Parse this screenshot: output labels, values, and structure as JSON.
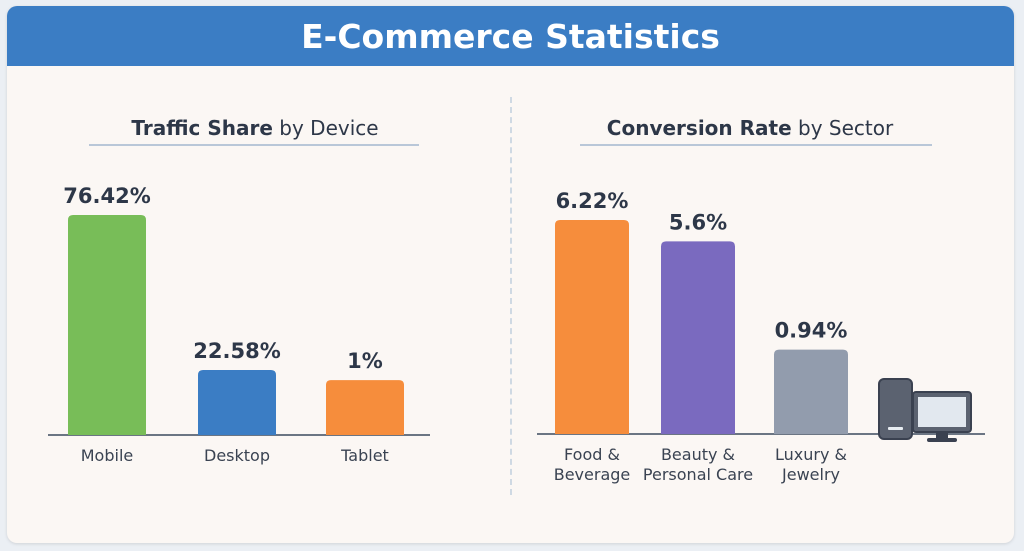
{
  "page": {
    "title": "E-Commerce Statistics"
  },
  "panels": [
    {
      "title_bold": "Traffic Share",
      "title_rest": " by Device"
    },
    {
      "title_bold": "Conversion Rate",
      "title_rest": " by Sector"
    }
  ],
  "icons": {
    "desktop_computer": "desktop-computer-icon"
  },
  "colors": {
    "header": "#3b7dc4",
    "mobile": "#78bd58",
    "desktop": "#3b7dc4",
    "tablet": "#f68d3c",
    "food": "#f68d3c",
    "beauty": "#7a6abf",
    "luxury": "#929cad"
  },
  "chart_data": [
    {
      "type": "bar",
      "title": "Traffic Share by Device",
      "categories": [
        "Mobile",
        "Desktop",
        "Tablet"
      ],
      "values": [
        76.42,
        22.58,
        1
      ],
      "labels": [
        "76.42%",
        "22.58%",
        "1%"
      ],
      "colors": [
        "#78bd58",
        "#3b7dc4",
        "#f68d3c"
      ],
      "unit": "%",
      "xlabel": "",
      "ylabel": "",
      "grid": false
    },
    {
      "type": "bar",
      "title": "Conversion Rate by Sector",
      "categories": [
        "Food & Beverage",
        "Beauty & Personal Care",
        "Luxury & Jewelry"
      ],
      "category_lines": [
        [
          "Food &",
          "Beverage"
        ],
        [
          "Beauty &",
          "Personal Care"
        ],
        [
          "Luxury &",
          "Jewelry"
        ]
      ],
      "values": [
        6.22,
        5.6,
        0.94
      ],
      "labels": [
        "6.22%",
        "5.6%",
        "0.94%"
      ],
      "colors": [
        "#f68d3c",
        "#7a6abf",
        "#929cad"
      ],
      "unit": "%",
      "xlabel": "",
      "ylabel": "",
      "grid": false
    }
  ]
}
